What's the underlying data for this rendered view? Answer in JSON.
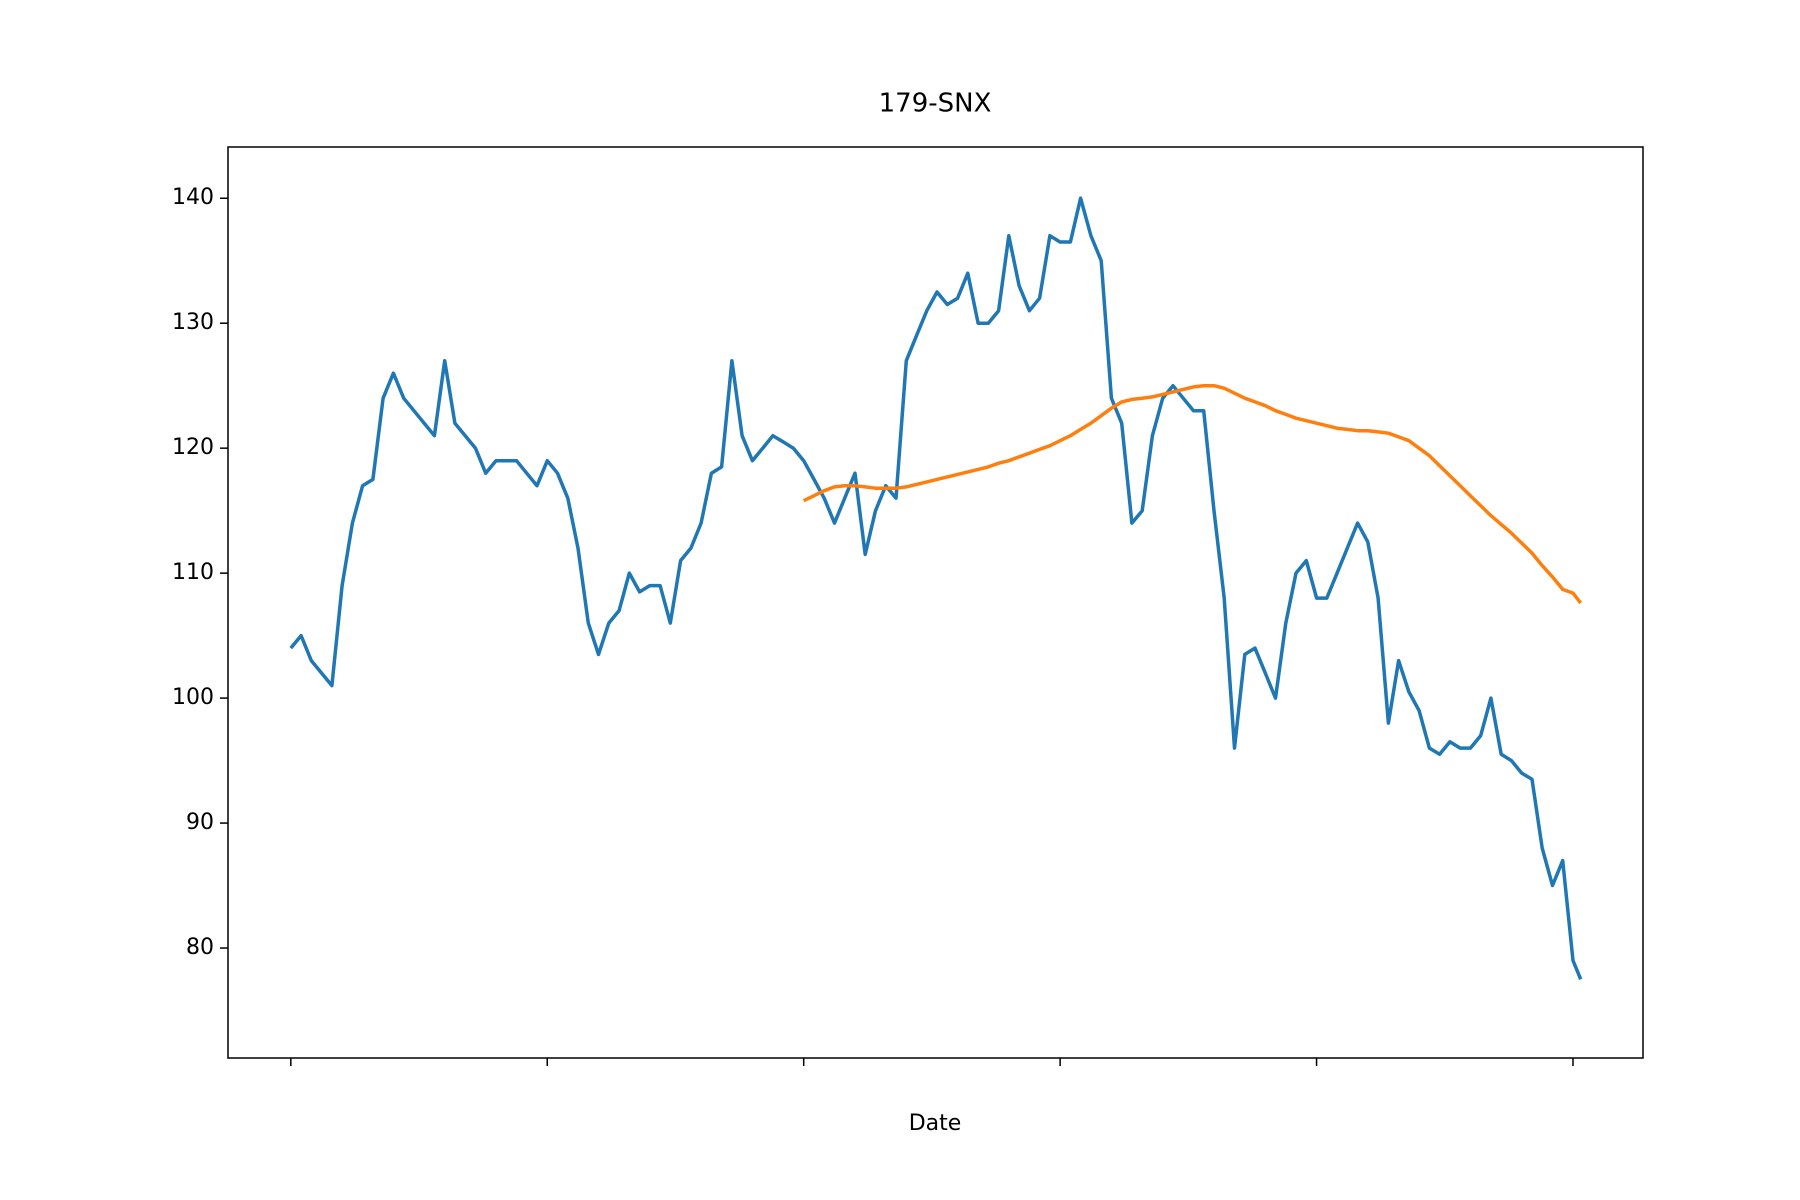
{
  "chart_data": {
    "type": "line",
    "title": "179-SNX",
    "xlabel": "Date",
    "x": [
      0,
      4,
      8,
      12,
      16,
      20,
      24,
      28,
      32,
      36,
      40,
      44,
      48,
      52,
      56,
      60,
      64,
      68,
      72,
      76,
      80,
      84,
      88,
      92,
      96,
      100,
      104,
      108,
      112,
      116,
      120,
      124,
      128,
      132,
      136,
      140,
      144,
      148,
      152,
      156,
      160,
      164,
      168,
      172,
      176,
      180,
      184,
      188,
      192,
      196,
      200,
      204,
      208,
      212,
      216,
      220,
      224,
      228,
      232,
      236,
      240,
      244,
      248,
      252,
      256,
      260,
      264,
      268,
      272,
      276,
      280,
      284,
      288,
      292,
      296,
      300,
      304,
      308,
      312,
      316,
      320,
      324,
      328,
      332,
      336,
      340,
      344,
      348,
      352,
      356,
      360,
      364,
      368,
      372,
      376,
      380,
      384,
      388,
      392,
      396,
      400,
      404,
      408,
      412,
      416,
      420,
      424,
      428,
      432,
      436,
      440,
      444,
      448,
      452,
      456,
      460,
      464,
      468,
      472,
      476,
      480,
      484,
      488,
      492,
      496,
      500,
      503
    ],
    "series": [
      {
        "color": "#1f77b4",
        "values": [
          104,
          105,
          103,
          102,
          101,
          109,
          114,
          117,
          117.5,
          124,
          126,
          124,
          123,
          122,
          121,
          127,
          122,
          121,
          120,
          118,
          119,
          119,
          119,
          118,
          117,
          119,
          118,
          116,
          112,
          106,
          103.5,
          106,
          107,
          110,
          108.5,
          109,
          109,
          106,
          111,
          112,
          114,
          118,
          118.5,
          127,
          121,
          119,
          120,
          121,
          120.5,
          120,
          119,
          117.5,
          116,
          114,
          116,
          118,
          111.5,
          115,
          117,
          116,
          127,
          129,
          131,
          132.5,
          131.5,
          132,
          134,
          130,
          130,
          131,
          137,
          133,
          131,
          132,
          137,
          136.5,
          136.5,
          140,
          137,
          135,
          124,
          122,
          114,
          115,
          121,
          124,
          125,
          124,
          123,
          123,
          115,
          108,
          96,
          103.5,
          104,
          102,
          100,
          106,
          110,
          111,
          108,
          108,
          110,
          112,
          114,
          112.5,
          108,
          98,
          103,
          100.5,
          99,
          96,
          95.5,
          96.5,
          96,
          96,
          97,
          100,
          95.5,
          95,
          94,
          93.5,
          88,
          85,
          87,
          79,
          77.5
        ]
      },
      {
        "color": "#ff7f0e",
        "values": [
          null,
          null,
          null,
          null,
          null,
          null,
          null,
          null,
          null,
          null,
          null,
          null,
          null,
          null,
          null,
          null,
          null,
          null,
          null,
          null,
          null,
          null,
          null,
          null,
          null,
          null,
          null,
          null,
          null,
          null,
          null,
          null,
          null,
          null,
          null,
          null,
          null,
          null,
          null,
          null,
          null,
          null,
          null,
          null,
          null,
          null,
          null,
          null,
          null,
          null,
          115.8,
          116.2,
          116.6,
          116.9,
          117.0,
          117.0,
          116.9,
          116.8,
          116.8,
          116.8,
          116.9,
          117.1,
          117.3,
          117.5,
          117.7,
          117.9,
          118.1,
          118.3,
          118.5,
          118.8,
          119.0,
          119.3,
          119.6,
          119.9,
          120.2,
          120.6,
          121.0,
          121.5,
          122.0,
          122.6,
          123.2,
          123.7,
          123.9,
          124.0,
          124.1,
          124.3,
          124.5,
          124.7,
          124.9,
          125.0,
          125.0,
          124.8,
          124.4,
          124.0,
          123.7,
          123.4,
          123.0,
          122.7,
          122.4,
          122.2,
          122.0,
          121.8,
          121.6,
          121.5,
          121.4,
          121.4,
          121.3,
          121.2,
          120.9,
          120.6,
          120.0,
          119.4,
          118.6,
          117.8,
          117.0,
          116.2,
          115.4,
          114.6,
          113.9,
          113.2,
          112.4,
          111.6,
          110.6,
          109.7,
          108.7,
          108.4,
          107.6
        ]
      }
    ],
    "xlim": [
      -24.5,
      527.3
    ],
    "xticks": [
      0,
      100,
      200,
      300,
      400,
      500
    ],
    "ylim": [
      71.2,
      144.1
    ],
    "yticks": [
      80,
      90,
      100,
      110,
      120,
      130,
      140
    ]
  }
}
